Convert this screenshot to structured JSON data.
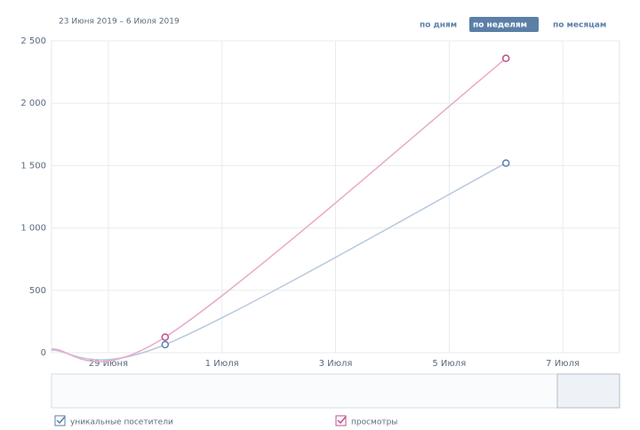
{
  "header": {
    "date_range": "23 Июня 2019 – 6 Июля 2019",
    "buttons": [
      "по дням",
      "по неделям",
      "по месяцам"
    ],
    "active_button": 1
  },
  "chart_data": {
    "type": "line",
    "x": [
      "06-28",
      "06-30",
      "07-06"
    ],
    "xlim": [
      "06-28",
      "07-08"
    ],
    "xticks": [
      {
        "value": "06-29",
        "label": "29 Июня"
      },
      {
        "value": "07-01",
        "label": "1 Июля"
      },
      {
        "value": "07-03",
        "label": "3 Июля"
      },
      {
        "value": "07-05",
        "label": "5 Июля"
      },
      {
        "value": "07-07",
        "label": "7 Июля"
      }
    ],
    "ylim": [
      0,
      2500
    ],
    "yticks": [
      0,
      500,
      {
        "value": 1000,
        "label": "1 000"
      },
      {
        "value": 1500,
        "label": "1 500"
      },
      {
        "value": 2000,
        "label": "2 000"
      },
      {
        "value": 2500,
        "label": "2 500"
      }
    ],
    "grid": true,
    "series": [
      {
        "name": "уникальные посетители",
        "color": "#5a7fa8",
        "values": [
          20,
          65,
          1520
        ]
      },
      {
        "name": "просмотры",
        "color": "#c0508a",
        "values": [
          30,
          125,
          2360
        ]
      }
    ]
  }
}
